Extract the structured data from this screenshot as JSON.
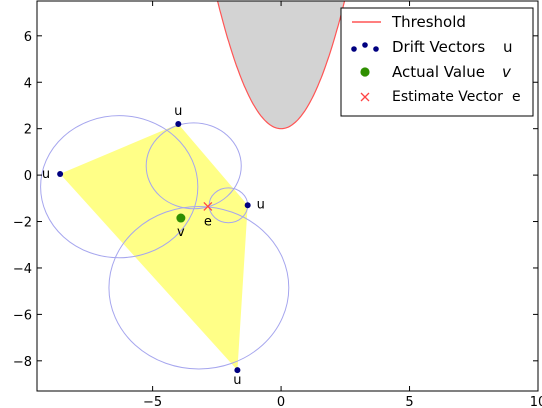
{
  "chart_data": {
    "type": "scatter",
    "title": "",
    "xlabel": "",
    "ylabel": "",
    "xlim": [
      -9.5,
      10
    ],
    "ylim": [
      -9.3,
      7.5
    ],
    "x_ticks": [
      -5,
      0,
      5,
      10
    ],
    "y_ticks": [
      -8,
      -6,
      -4,
      -2,
      0,
      2,
      4,
      6
    ],
    "grid": false,
    "legend_position": "top-right",
    "threshold": {
      "label": "Threshold",
      "equation": "y = 2 + 0.9 x^2",
      "color": "#ff5555",
      "fill_color": "#d3d3d3"
    },
    "drift_vectors": {
      "label": "Drift Vectors",
      "symbol": "u",
      "color": "#000080",
      "points": [
        {
          "x": -4.0,
          "y": 2.2,
          "label": "u"
        },
        {
          "x": -8.6,
          "y": 0.05,
          "label": "u"
        },
        {
          "x": -1.3,
          "y": -1.3,
          "label": "u"
        },
        {
          "x": -1.7,
          "y": -8.4,
          "label": "u"
        }
      ]
    },
    "hull_color": "#ffff7a",
    "circles": [
      {
        "cx": -6.3,
        "cy": -0.5,
        "r": 3.06
      },
      {
        "cx": -3.4,
        "cy": 0.4,
        "r": 1.85
      },
      {
        "cx": -2.05,
        "cy": -1.3,
        "r": 0.75
      },
      {
        "cx": -3.2,
        "cy": -4.85,
        "r": 3.5
      }
    ],
    "circle_color": "#a6a6ee",
    "actual_value": {
      "label": "Actual Value",
      "symbol": "v",
      "x": -3.9,
      "y": -1.85,
      "point_label": "v",
      "color": "#2f8f00"
    },
    "estimate": {
      "label": "Estimate Vector",
      "symbol": "e",
      "x": -2.85,
      "y": -1.35,
      "point_label": "e",
      "color": "#ff4444"
    }
  }
}
